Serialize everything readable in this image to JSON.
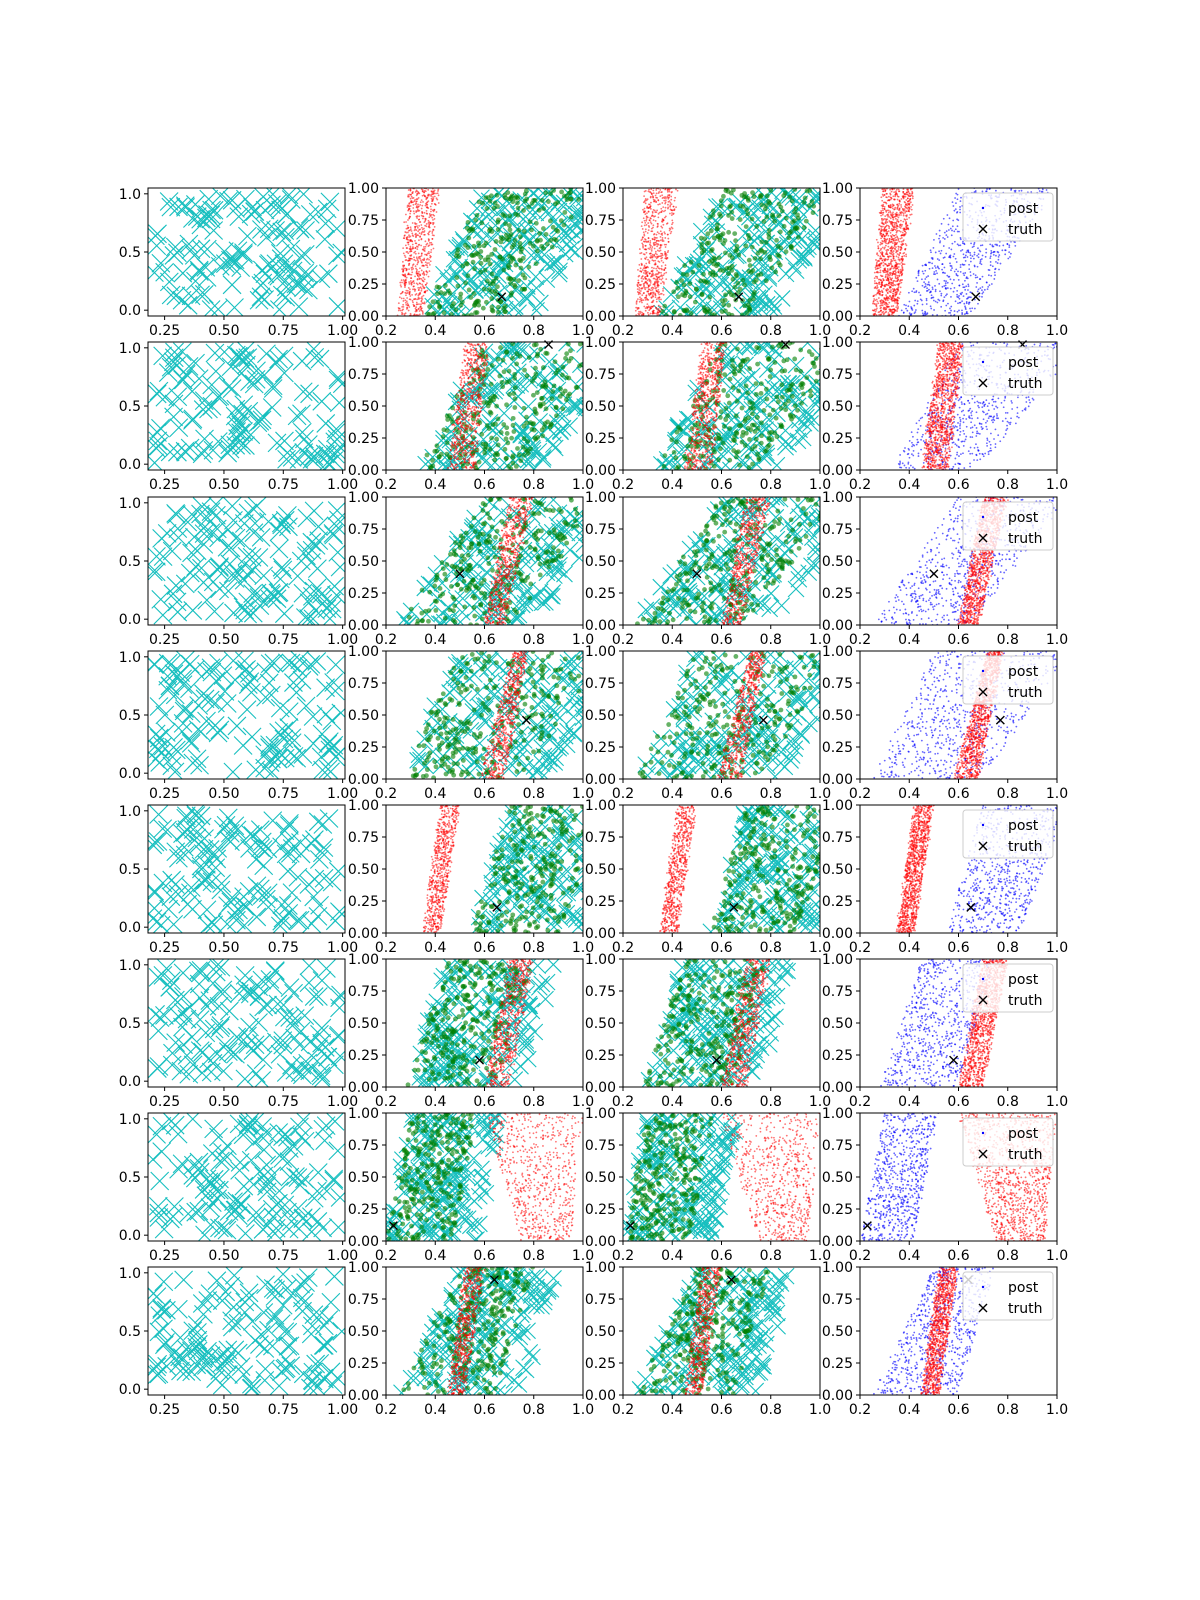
{
  "figure": {
    "rows": 8,
    "cols": 4
  },
  "colors": {
    "prior": "#17bfbf",
    "red": "#ff0000",
    "green": "#007f00",
    "blue": "#0000ff",
    "truth": "#000000"
  },
  "legend": {
    "post_label": "post",
    "truth_label": "truth"
  },
  "chart_data": {
    "type": "scatter",
    "grid": false,
    "col0": {
      "xlim": [
        0.18,
        1.01
      ],
      "ylim": [
        -0.05,
        1.05
      ],
      "xticks": [
        "0.25",
        "0.50",
        "0.75",
        "1.00"
      ],
      "yticks": [
        "0.0",
        "0.5",
        "1.0"
      ],
      "marker": "x",
      "series": "prior samples"
    },
    "cols123": {
      "xlim": [
        0.2,
        1.0
      ],
      "ylim": [
        0.0,
        1.0
      ],
      "xticks": [
        "0.2",
        "0.4",
        "0.6",
        "0.8",
        "1.0"
      ],
      "yticks": [
        "0.00",
        "0.25",
        "0.50",
        "0.75",
        "1.00"
      ]
    },
    "panels": [
      {
        "truth": [
          0.67,
          0.15
        ],
        "band_red": [
          0.25,
          0.35,
          0.29,
          0.42
        ],
        "spread": [
          0.35,
          0.55,
          0.6,
          0.9
        ]
      },
      {
        "truth": [
          0.86,
          0.98
        ],
        "band_red": [
          0.45,
          0.56,
          0.52,
          0.62
        ],
        "spread": [
          0.33,
          0.58,
          0.6,
          1.0
        ]
      },
      {
        "truth": [
          0.5,
          0.4
        ],
        "band_red": [
          0.6,
          0.68,
          0.7,
          0.8
        ],
        "spread": [
          0.25,
          0.55,
          0.6,
          0.95
        ]
      },
      {
        "truth": [
          0.77,
          0.46
        ],
        "band_red": [
          0.58,
          0.68,
          0.72,
          0.78
        ],
        "spread": [
          0.25,
          0.6,
          0.5,
          0.95
        ]
      },
      {
        "truth": [
          0.65,
          0.2
        ],
        "band_red": [
          0.35,
          0.42,
          0.42,
          0.5
        ],
        "spread": [
          0.55,
          0.75,
          0.7,
          0.95
        ]
      },
      {
        "truth": [
          0.58,
          0.21
        ],
        "band_red": [
          0.6,
          0.7,
          0.7,
          0.8
        ],
        "spread": [
          0.28,
          0.5,
          0.45,
          0.65
        ]
      },
      {
        "truth": [
          0.23,
          0.12
        ],
        "band_red": [
          0.75,
          0.95,
          0.6,
          1.0
        ],
        "spread": [
          0.2,
          0.32,
          0.3,
          0.42
        ]
      },
      {
        "truth": [
          0.64,
          0.9
        ],
        "band_red": [
          0.45,
          0.52,
          0.52,
          0.6
        ],
        "spread": [
          0.25,
          0.5,
          0.5,
          0.65
        ]
      }
    ]
  }
}
